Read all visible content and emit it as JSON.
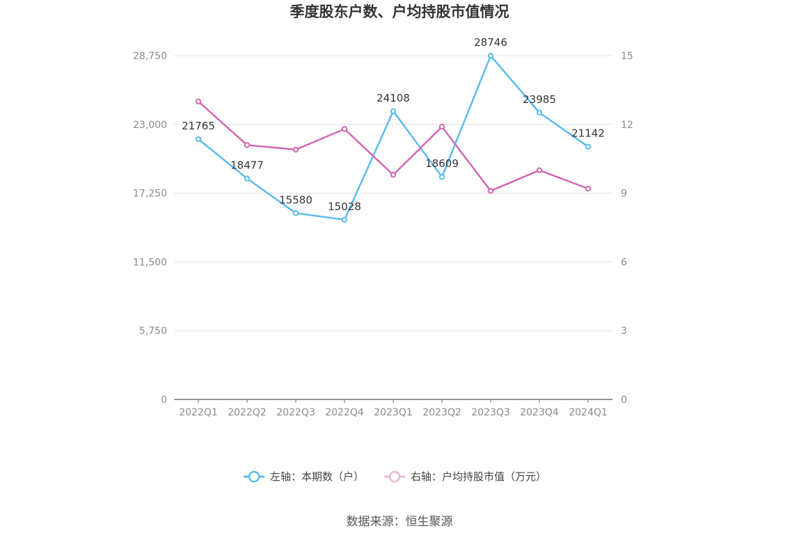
{
  "chart_data": {
    "type": "line",
    "title": "季度股东户数、户均持股市值情况",
    "categories": [
      "2022Q1",
      "2022Q2",
      "2022Q3",
      "2022Q4",
      "2023Q1",
      "2023Q2",
      "2023Q3",
      "2023Q4",
      "2024Q1"
    ],
    "left_axis": {
      "ylim": [
        0,
        28750
      ],
      "ticks": [
        "0",
        "5,750",
        "11,500",
        "17,250",
        "23,000",
        "28,750"
      ]
    },
    "right_axis": {
      "ylim": [
        0,
        15
      ],
      "ticks": [
        "0",
        "3",
        "6",
        "9",
        "12",
        "15"
      ]
    },
    "series": [
      {
        "name": "左轴：本期数（户）",
        "axis": "left",
        "color": "#5bbcee",
        "values": [
          21765,
          18477,
          15580,
          15028,
          24108,
          18609,
          28746,
          23985,
          21142
        ],
        "labels": [
          "21765",
          "18477",
          "15580",
          "15028",
          "24108",
          "18609",
          "28746",
          "23985",
          "21142"
        ]
      },
      {
        "name": "右轴：户均持股市值（万元）",
        "axis": "right",
        "color": "#d067b1",
        "values": [
          13.0,
          11.1,
          10.9,
          11.8,
          9.8,
          11.9,
          9.1,
          10.0,
          9.2
        ]
      }
    ],
    "grid": true,
    "legend_position": "bottom",
    "legend_inactive_color": "#e9b9dc",
    "source": "数据来源：恒生聚源"
  }
}
